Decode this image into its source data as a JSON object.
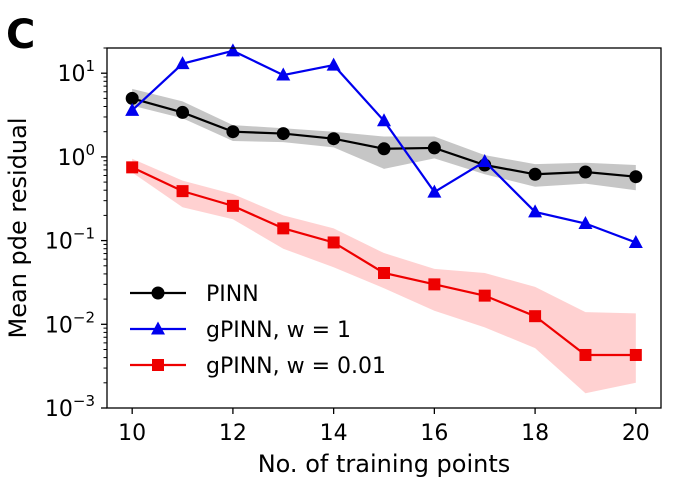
{
  "panel_label": "C",
  "chart_data": {
    "type": "line",
    "xlabel": "No. of training points",
    "ylabel": "Mean pde residual",
    "xlim": [
      9.5,
      20.5
    ],
    "ylim": [
      0.001,
      20
    ],
    "yscale": "log",
    "x_ticks": [
      10,
      12,
      14,
      16,
      18,
      20
    ],
    "y_ticks": [
      {
        "value": 0.001,
        "base": "10",
        "exp": "−3"
      },
      {
        "value": 0.01,
        "base": "10",
        "exp": "−2"
      },
      {
        "value": 0.1,
        "base": "10",
        "exp": "−1"
      },
      {
        "value": 1,
        "base": "10",
        "exp": "0"
      },
      {
        "value": 10,
        "base": "10",
        "exp": "1"
      }
    ],
    "grid": false,
    "legend_position": "lower-left",
    "x": [
      10,
      11,
      12,
      13,
      14,
      15,
      16,
      17,
      18,
      19,
      20
    ],
    "series": [
      {
        "name": "PINN",
        "color": "#000000",
        "marker": "circle",
        "band_color": "#808080",
        "values": [
          5.0,
          3.4,
          2.0,
          1.9,
          1.65,
          1.25,
          1.28,
          0.8,
          0.62,
          0.66,
          0.58
        ],
        "lower": [
          4.1,
          2.9,
          1.55,
          1.5,
          1.3,
          0.72,
          0.96,
          0.62,
          0.44,
          0.48,
          0.4
        ],
        "upper": [
          6.5,
          4.6,
          2.4,
          2.2,
          2.0,
          1.75,
          1.75,
          1.05,
          0.82,
          0.85,
          0.8
        ]
      },
      {
        "name": "gPINN, w = 1",
        "color": "#0000ee",
        "marker": "triangle",
        "values": [
          3.6,
          13.0,
          18.5,
          9.5,
          12.5,
          2.7,
          0.38,
          0.88,
          0.22,
          0.16,
          0.095
        ]
      },
      {
        "name": "gPINN, w = 0.01",
        "color": "#ee0000",
        "marker": "square",
        "band_color": "#ff9a9a",
        "values": [
          0.75,
          0.39,
          0.26,
          0.14,
          0.095,
          0.041,
          0.03,
          0.022,
          0.0125,
          0.0043,
          0.0043
        ],
        "lower": [
          0.65,
          0.25,
          0.18,
          0.08,
          0.048,
          0.027,
          0.0145,
          0.0092,
          0.0052,
          0.0015,
          0.002
        ],
        "upper": [
          0.95,
          0.52,
          0.36,
          0.2,
          0.14,
          0.071,
          0.046,
          0.041,
          0.028,
          0.014,
          0.0135
        ]
      }
    ]
  }
}
